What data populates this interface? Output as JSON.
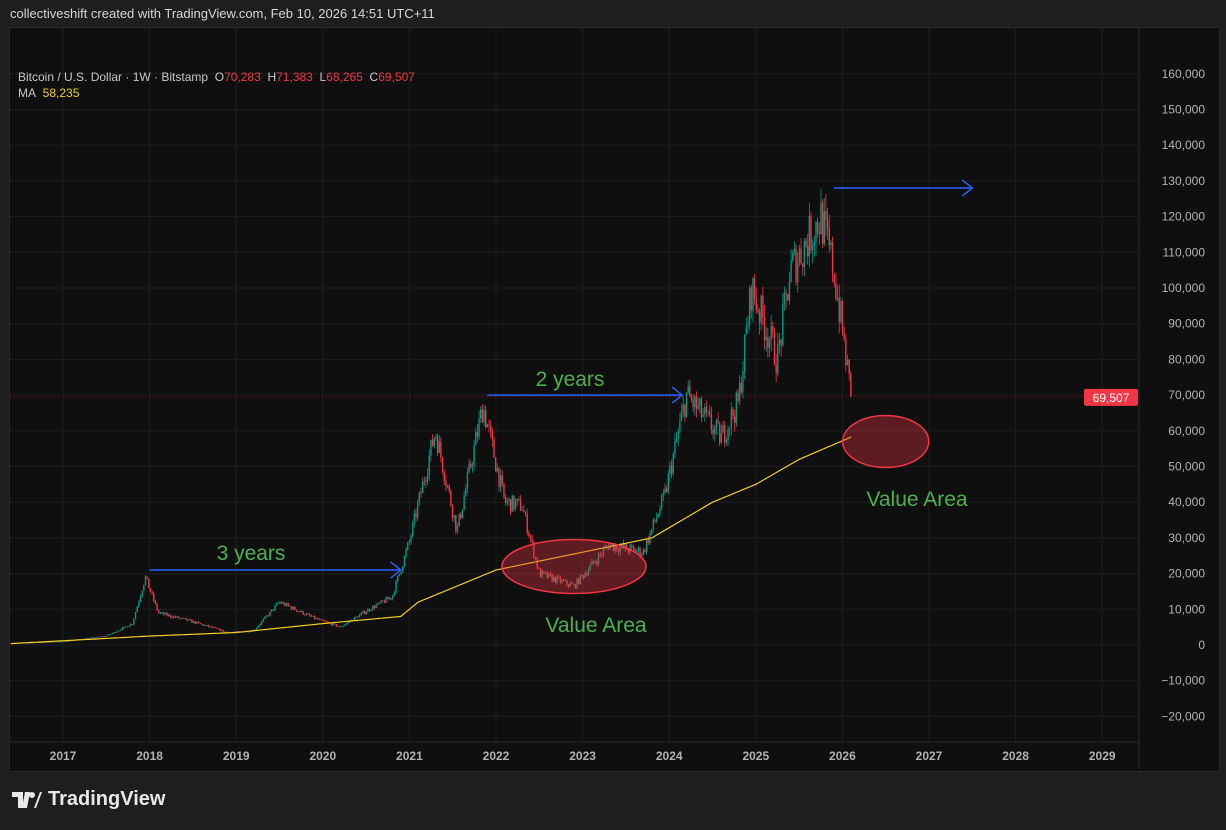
{
  "header": "collectiveshift created with TradingView.com, Feb 10, 2026 14:51 UTC+11",
  "legend": {
    "symbol": "Bitcoin / U.S. Dollar · 1W · Bitstamp",
    "o_label": "O",
    "o": "70,283",
    "h_label": "H",
    "h": "71,383",
    "l_label": "L",
    "l": "68,265",
    "c_label": "C",
    "c": "69,507",
    "ma_label": "MA",
    "ma": "58,235"
  },
  "logo": "TradingView",
  "colors": {
    "up": "#089981",
    "down": "#f23645",
    "ma": "#f0d020",
    "arrow": "#2962ff",
    "annotation_text": "#4caf50",
    "ellipse": "#f23645"
  },
  "chart_data": {
    "type": "candlestick",
    "title": "Bitcoin / U.S. Dollar · 1W · Bitstamp",
    "ylim": [
      -25000,
      165000
    ],
    "xlim": [
      2016.4,
      2029.4
    ],
    "y_ticks": [
      160000,
      150000,
      140000,
      130000,
      120000,
      110000,
      100000,
      90000,
      80000,
      70000,
      60000,
      50000,
      40000,
      30000,
      20000,
      10000,
      0,
      -10000,
      -20000
    ],
    "y_tick_labels": [
      "160,000",
      "150,000",
      "140,000",
      "130,000",
      "120,000",
      "110,000",
      "100,000",
      "90,000",
      "80,000",
      "70,000",
      "60,000",
      "50,000",
      "40,000",
      "30,000",
      "20,000",
      "10,000",
      "0",
      "−10,000",
      "−20,000"
    ],
    "x_ticks": [
      "2017",
      "2018",
      "2019",
      "2020",
      "2021",
      "2022",
      "2023",
      "2024",
      "2025",
      "2026",
      "2027",
      "2028",
      "2029"
    ],
    "last_price_label": "69,507",
    "last_price": 69507,
    "price_path": [
      [
        2016.4,
        500
      ],
      [
        2017.0,
        1000
      ],
      [
        2017.5,
        2500
      ],
      [
        2017.8,
        6000
      ],
      [
        2017.95,
        19000
      ],
      [
        2018.1,
        9000
      ],
      [
        2018.5,
        6500
      ],
      [
        2018.9,
        3500
      ],
      [
        2019.2,
        4000
      ],
      [
        2019.5,
        12000
      ],
      [
        2019.9,
        7500
      ],
      [
        2020.2,
        5000
      ],
      [
        2020.5,
        9500
      ],
      [
        2020.8,
        13500
      ],
      [
        2021.0,
        29000
      ],
      [
        2021.3,
        60000
      ],
      [
        2021.55,
        32000
      ],
      [
        2021.85,
        67000
      ],
      [
        2022.1,
        40000
      ],
      [
        2022.3,
        39000
      ],
      [
        2022.5,
        20000
      ],
      [
        2022.9,
        16500
      ],
      [
        2023.3,
        28000
      ],
      [
        2023.7,
        26000
      ],
      [
        2023.95,
        42000
      ],
      [
        2024.2,
        70000
      ],
      [
        2024.6,
        58000
      ],
      [
        2024.8,
        68000
      ],
      [
        2024.95,
        100000
      ],
      [
        2025.25,
        80000
      ],
      [
        2025.4,
        105000
      ],
      [
        2025.75,
        120000
      ],
      [
        2025.9,
        105000
      ],
      [
        2026.0,
        88000
      ],
      [
        2026.1,
        69507
      ]
    ],
    "ma_path": [
      [
        2016.4,
        400
      ],
      [
        2018.0,
        2500
      ],
      [
        2019.0,
        3500
      ],
      [
        2020.0,
        6000
      ],
      [
        2020.9,
        8000
      ],
      [
        2021.1,
        12000
      ],
      [
        2022.0,
        21000
      ],
      [
        2023.0,
        26000
      ],
      [
        2023.8,
        30000
      ],
      [
        2024.5,
        40000
      ],
      [
        2025.0,
        45000
      ],
      [
        2025.5,
        52000
      ],
      [
        2026.1,
        58235
      ]
    ],
    "annotations": {
      "arrows": [
        {
          "label": "3 years",
          "from": [
            2018.0,
            21000
          ],
          "to": [
            2020.9,
            21000
          ]
        },
        {
          "label": "2 years",
          "from": [
            2021.9,
            70000
          ],
          "to": [
            2024.15,
            70000
          ]
        },
        {
          "label": "",
          "from": [
            2025.9,
            128000
          ],
          "to": [
            2027.5,
            128000
          ]
        }
      ],
      "zones": [
        {
          "label": "Value Area",
          "center": [
            2022.9,
            22000
          ]
        },
        {
          "label": "Value Area",
          "center": [
            2026.5,
            57000
          ]
        }
      ]
    }
  }
}
